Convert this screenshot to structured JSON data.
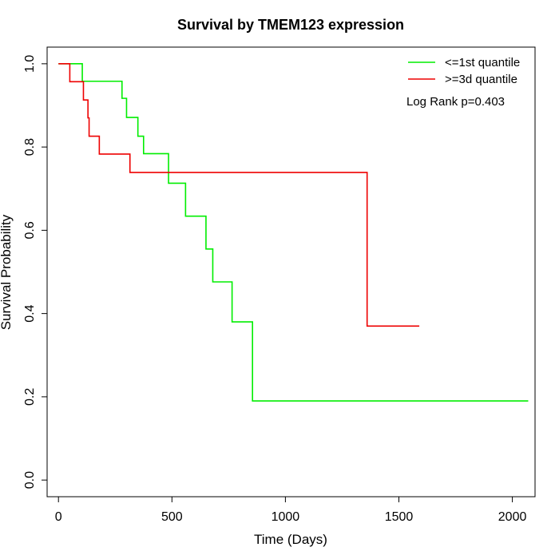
{
  "chart_data": {
    "type": "line",
    "title": "Survival by TMEM123 expression",
    "xlabel": "Time (Days)",
    "ylabel": "Survival Probability",
    "xlim": [
      -50,
      2100
    ],
    "ylim": [
      -0.04,
      1.04
    ],
    "x_ticks": [
      0,
      500,
      1000,
      1500,
      2000
    ],
    "x_tick_labels": [
      "0",
      "500",
      "1000",
      "1500",
      "2000"
    ],
    "y_ticks": [
      0.0,
      0.2,
      0.4,
      0.6,
      0.8,
      1.0
    ],
    "y_tick_labels": [
      "0.0",
      "0.2",
      "0.4",
      "0.6",
      "0.8",
      "1.0"
    ],
    "grid": false,
    "legend_position": "top-right",
    "annotation": "Log Rank p=0.403",
    "series": [
      {
        "name": "<=1st quantile",
        "color": "#00ee00",
        "step": true,
        "points": [
          [
            0,
            1.0
          ],
          [
            105,
            0.958
          ],
          [
            280,
            0.917
          ],
          [
            300,
            0.871
          ],
          [
            350,
            0.826
          ],
          [
            375,
            0.784
          ],
          [
            485,
            0.713
          ],
          [
            560,
            0.634
          ],
          [
            650,
            0.555
          ],
          [
            680,
            0.476
          ],
          [
            765,
            0.38
          ],
          [
            855,
            0.19
          ],
          [
            2070,
            0.19
          ]
        ]
      },
      {
        "name": ">=3d quantile",
        "color": "#ee0000",
        "step": true,
        "points": [
          [
            0,
            1.0
          ],
          [
            50,
            0.957
          ],
          [
            110,
            0.913
          ],
          [
            130,
            0.87
          ],
          [
            135,
            0.826
          ],
          [
            180,
            0.783
          ],
          [
            315,
            0.739
          ],
          [
            1360,
            0.37
          ],
          [
            1590,
            0.37
          ]
        ]
      }
    ]
  }
}
